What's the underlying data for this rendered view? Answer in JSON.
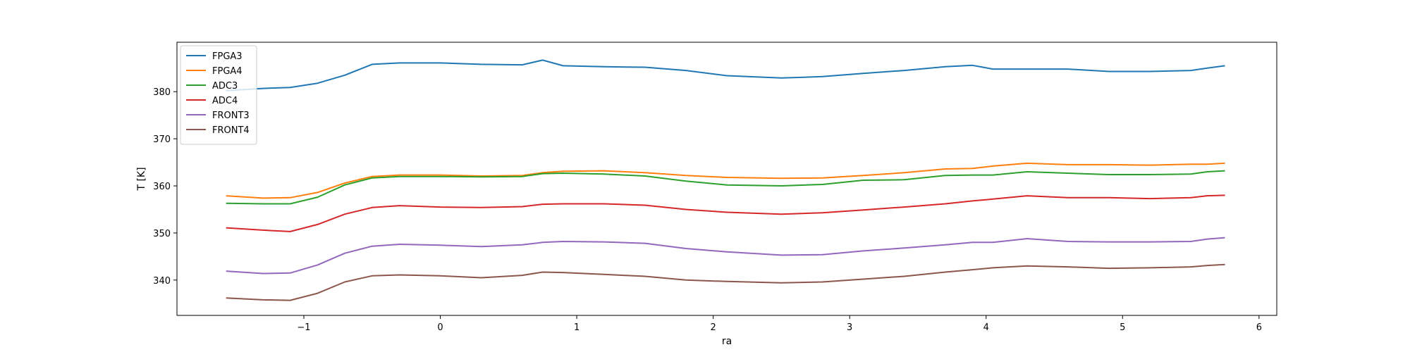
{
  "chart_data": {
    "type": "line",
    "title": "",
    "xlabel": "ra",
    "ylabel": "T [K]",
    "xlim": [
      -1.93,
      6.13
    ],
    "ylim": [
      332.5,
      390.5
    ],
    "xticks": [
      -1,
      0,
      1,
      2,
      3,
      4,
      5,
      6
    ],
    "xtick_labels": [
      "−1",
      "0",
      "1",
      "2",
      "3",
      "4",
      "5",
      "6"
    ],
    "yticks": [
      340,
      350,
      360,
      370,
      380
    ],
    "ytick_labels": [
      "340",
      "350",
      "360",
      "370",
      "380"
    ],
    "grid": false,
    "legend": "top-left",
    "x": [
      -1.57,
      -1.3,
      -1.1,
      -0.9,
      -0.7,
      -0.5,
      -0.3,
      0.0,
      0.3,
      0.6,
      0.75,
      0.9,
      1.2,
      1.5,
      1.8,
      2.1,
      2.5,
      2.8,
      3.1,
      3.4,
      3.7,
      3.9,
      4.05,
      4.3,
      4.6,
      4.9,
      5.2,
      5.5,
      5.62,
      5.75
    ],
    "series": [
      {
        "name": "FPGA3",
        "color": "#1f77b4",
        "values": [
          380.2,
          380.7,
          380.9,
          381.8,
          383.5,
          385.8,
          386.1,
          386.1,
          385.8,
          385.7,
          386.7,
          385.5,
          385.3,
          385.2,
          384.5,
          383.4,
          382.9,
          383.2,
          383.9,
          384.5,
          385.3,
          385.6,
          384.8,
          384.8,
          384.8,
          384.3,
          384.3,
          384.5,
          385.0,
          385.5
        ]
      },
      {
        "name": "FPGA4",
        "color": "#ff7f0e",
        "values": [
          357.9,
          357.4,
          357.5,
          358.6,
          360.6,
          362.0,
          362.3,
          362.3,
          362.1,
          362.2,
          362.8,
          363.1,
          363.2,
          362.8,
          362.2,
          361.8,
          361.6,
          361.7,
          362.2,
          362.8,
          363.6,
          363.7,
          364.2,
          364.8,
          364.5,
          364.5,
          364.4,
          364.6,
          364.6,
          364.8
        ]
      },
      {
        "name": "ADC3",
        "color": "#2ca02c",
        "values": [
          356.3,
          356.2,
          356.2,
          357.6,
          360.2,
          361.7,
          362.0,
          362.0,
          361.9,
          362.0,
          362.6,
          362.7,
          362.5,
          362.1,
          361.0,
          360.2,
          360.0,
          360.3,
          361.2,
          361.3,
          362.2,
          362.3,
          362.3,
          363.0,
          362.7,
          362.4,
          362.4,
          362.5,
          363.0,
          363.2
        ]
      },
      {
        "name": "ADC4",
        "color": "#d62728",
        "values": [
          351.1,
          350.6,
          350.3,
          351.8,
          354.0,
          355.4,
          355.8,
          355.5,
          355.4,
          355.6,
          356.1,
          356.2,
          356.2,
          355.9,
          355.0,
          354.4,
          354.0,
          354.3,
          354.9,
          355.5,
          356.2,
          356.8,
          357.2,
          357.9,
          357.5,
          357.5,
          357.3,
          357.5,
          357.9,
          358.0
        ]
      },
      {
        "name": "FRONT3",
        "color": "#9467bd",
        "values": [
          341.9,
          341.4,
          341.5,
          343.2,
          345.7,
          347.2,
          347.6,
          347.4,
          347.1,
          347.5,
          348.0,
          348.2,
          348.1,
          347.8,
          346.7,
          346.0,
          345.3,
          345.4,
          346.2,
          346.8,
          347.5,
          348.0,
          348.0,
          348.8,
          348.2,
          348.1,
          348.1,
          348.2,
          348.7,
          349.0
        ]
      },
      {
        "name": "FRONT4",
        "color": "#8c564b",
        "values": [
          336.2,
          335.8,
          335.7,
          337.2,
          339.6,
          340.9,
          341.1,
          340.9,
          340.5,
          341.0,
          341.7,
          341.6,
          341.2,
          340.8,
          340.0,
          339.7,
          339.4,
          339.6,
          340.2,
          340.8,
          341.7,
          342.2,
          342.6,
          343.0,
          342.8,
          342.5,
          342.6,
          342.8,
          343.1,
          343.3
        ]
      }
    ]
  }
}
